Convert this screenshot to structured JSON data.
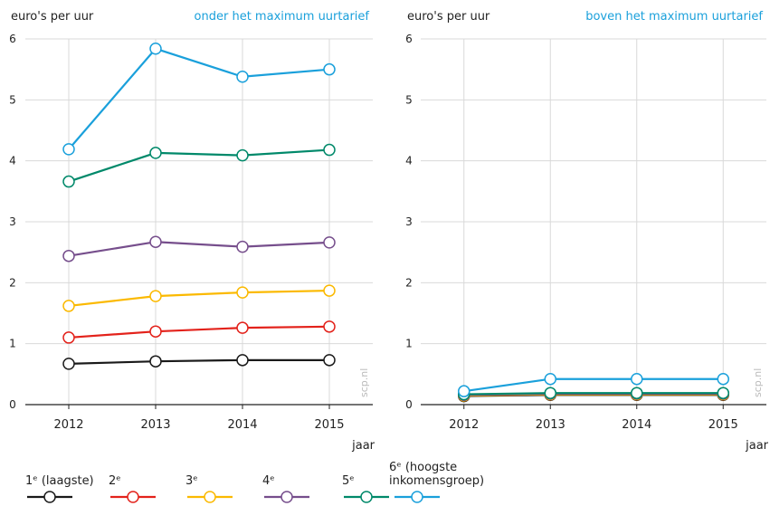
{
  "chart_data": [
    {
      "type": "line",
      "y_label": "euro's per uur",
      "subtitle": "onder het maximum uurtarief",
      "x_label": "jaar",
      "source": "scp.nl",
      "x": [
        2012,
        2013,
        2014,
        2015
      ],
      "xlim": [
        2011.5,
        2015.5
      ],
      "xticks": [
        2012,
        2013,
        2014,
        2015
      ],
      "ylim": [
        0,
        6
      ],
      "yticks": [
        0,
        1,
        2,
        3,
        4,
        5,
        6
      ],
      "grid": true,
      "series": [
        {
          "name": "1ᵉ (laagste)",
          "color": "#1a1a1a",
          "values": [
            0.67,
            0.71,
            0.73,
            0.73
          ]
        },
        {
          "name": "2ᵉ",
          "color": "#e3221b",
          "values": [
            1.1,
            1.2,
            1.26,
            1.28
          ]
        },
        {
          "name": "3ᵉ",
          "color": "#fbb900",
          "values": [
            1.62,
            1.78,
            1.84,
            1.87
          ]
        },
        {
          "name": "4ᵉ",
          "color": "#764e8c",
          "values": [
            2.44,
            2.67,
            2.59,
            2.66
          ]
        },
        {
          "name": "5ᵉ",
          "color": "#00896a",
          "values": [
            3.66,
            4.13,
            4.09,
            4.18
          ]
        },
        {
          "name": "6ᵉ (hoogste inkomensgroep)",
          "color": "#1aa0db",
          "values": [
            4.19,
            5.84,
            5.38,
            5.5
          ]
        }
      ]
    },
    {
      "type": "line",
      "y_label": "euro's per uur",
      "subtitle": "boven het maximum uurtarief",
      "x_label": "jaar",
      "source": "scp.nl",
      "x": [
        2012,
        2013,
        2014,
        2015
      ],
      "xlim": [
        2011.5,
        2015.5
      ],
      "xticks": [
        2012,
        2013,
        2014,
        2015
      ],
      "ylim": [
        0,
        6
      ],
      "yticks": [
        0,
        1,
        2,
        3,
        4,
        5,
        6
      ],
      "grid": true,
      "series": [
        {
          "color": "#1a1a1a",
          "values": [
            0.14,
            0.16,
            0.16,
            0.16
          ]
        },
        {
          "color": "#e3221b",
          "values": [
            0.15,
            0.17,
            0.17,
            0.17
          ]
        },
        {
          "color": "#fbb900",
          "values": [
            0.15,
            0.17,
            0.17,
            0.17
          ]
        },
        {
          "color": "#764e8c",
          "values": [
            0.16,
            0.18,
            0.18,
            0.18
          ]
        },
        {
          "color": "#00896a",
          "values": [
            0.17,
            0.19,
            0.19,
            0.19
          ]
        },
        {
          "color": "#1aa0db",
          "values": [
            0.22,
            0.42,
            0.42,
            0.42
          ]
        }
      ]
    }
  ]
}
